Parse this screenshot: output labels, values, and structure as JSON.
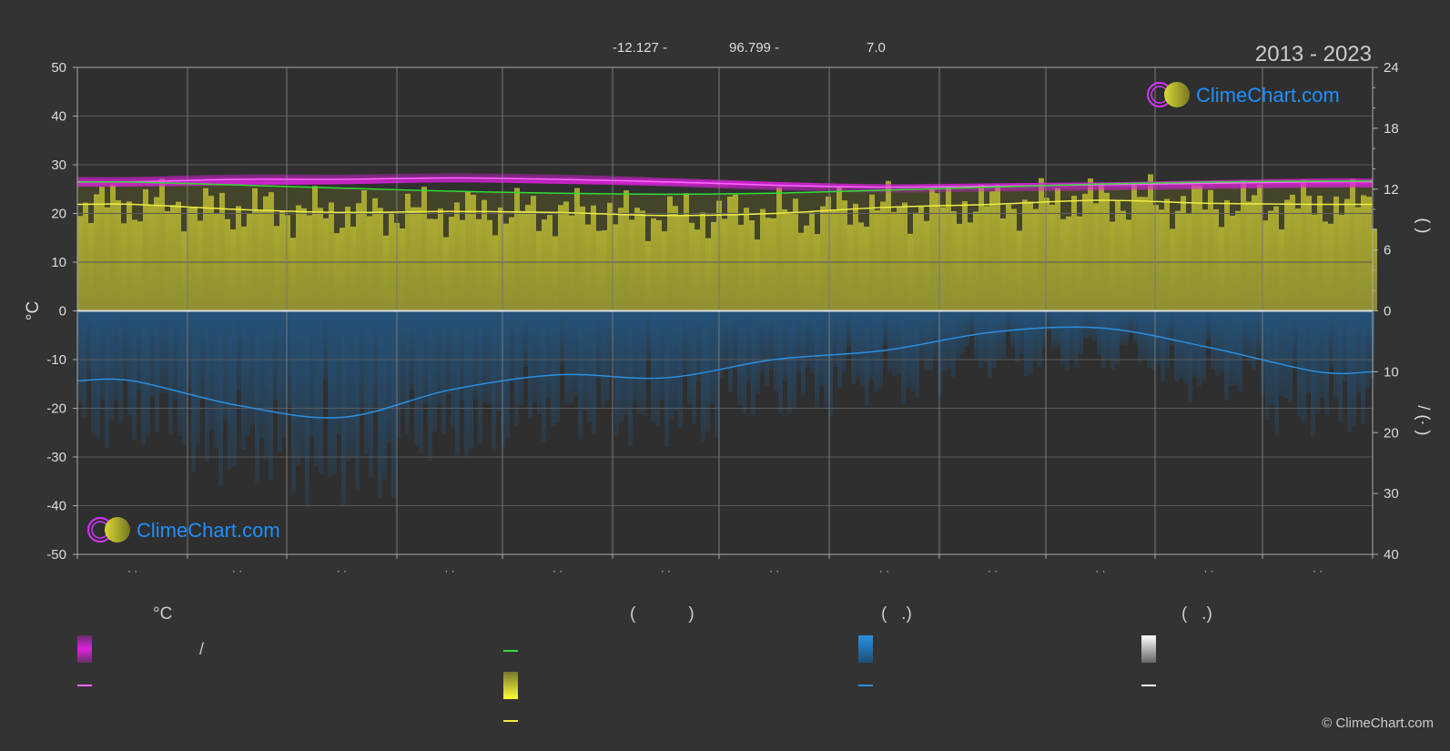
{
  "header": {
    "coords": [
      "-12.127 -",
      "96.799 -",
      "7.0"
    ],
    "period": "2013 - 2023"
  },
  "brand": {
    "name": "ClimeChart.com",
    "copyright": "© ClimeChart.com"
  },
  "colors": {
    "background": "#333333",
    "max_min_band": "#e020e0",
    "daylight": "#33dd33",
    "sunshine_band": "#cccc33",
    "sunshine_line": "#eeee44",
    "rain_band": "#1a6fb8",
    "rain_line": "#2a8fe0",
    "mean_line": "#ff66ff",
    "snow": "#ffffff",
    "brand": "#1e90ff",
    "logo_ring": "#d633ff",
    "logo_sun": "#d9d933"
  },
  "chart_data": {
    "type": "area",
    "title": "2013 - 2023",
    "x_ticks": [
      "· ·",
      "· ·",
      "· ·",
      "· ·",
      "· ·",
      "· ·",
      "· ·",
      "· ·",
      "· ·",
      "· ·",
      "· ·",
      "· ·"
    ],
    "y_left": {
      "label": "°C",
      "range": [
        -50,
        50
      ],
      "ticks": [
        50,
        40,
        30,
        20,
        10,
        0,
        -10,
        -20,
        -30,
        -40,
        -50
      ]
    },
    "y_right_top": {
      "range": [
        0,
        24
      ],
      "ticks": [
        24,
        18,
        12,
        6,
        0
      ],
      "label": "(   )"
    },
    "y_right_bottom": {
      "range": [
        0,
        40
      ],
      "ticks": [
        0,
        10,
        20,
        30,
        40
      ],
      "label": "/  (·  )"
    },
    "grid": true,
    "months": [
      0,
      1,
      2,
      3,
      4,
      5,
      6,
      7,
      8,
      9,
      10,
      11
    ],
    "series": [
      {
        "role": "temp_max_band_top",
        "values": [
          27.5,
          28.0,
          28.0,
          28.3,
          28.0,
          27.3,
          26.5,
          26.0,
          26.2,
          26.4,
          26.8,
          27.2
        ]
      },
      {
        "role": "temp_max_band_bottom",
        "values": [
          25.5,
          25.8,
          26.0,
          26.4,
          26.1,
          25.6,
          24.8,
          24.3,
          24.5,
          24.7,
          25.0,
          25.3
        ]
      },
      {
        "role": "temp_mean",
        "values": [
          26.5,
          27.0,
          27.0,
          27.3,
          27.0,
          26.5,
          25.8,
          25.4,
          25.6,
          25.9,
          26.2,
          26.5
        ]
      },
      {
        "role": "daylight",
        "values": [
          12.7,
          12.4,
          12.1,
          11.8,
          11.6,
          11.5,
          11.6,
          11.9,
          12.2,
          12.5,
          12.7,
          12.8
        ]
      },
      {
        "role": "sunshine",
        "values": [
          10.5,
          10.0,
          9.7,
          9.8,
          9.7,
          9.4,
          9.6,
          10.2,
          10.5,
          10.9,
          10.6,
          10.5
        ]
      },
      {
        "role": "precipitation",
        "values": [
          11.5,
          15.5,
          17.5,
          13.0,
          10.5,
          11.0,
          8.0,
          6.5,
          3.5,
          2.8,
          6.0,
          10.0
        ]
      }
    ]
  },
  "legend": {
    "col1": {
      "heading": "°C",
      "row1": "/",
      "row2": ""
    },
    "col2": {
      "heading": "(           )",
      "row1": "",
      "row2": "",
      "row3": ""
    },
    "col3": {
      "heading": "(   .)",
      "row1": "",
      "row2": ""
    },
    "col4": {
      "heading": "(   .)",
      "row1": "",
      "row2": ""
    }
  }
}
